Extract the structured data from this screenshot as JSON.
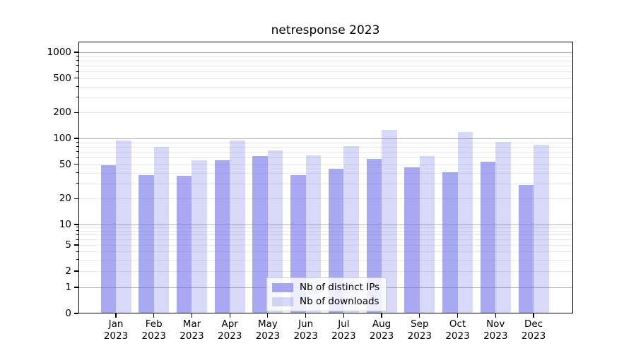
{
  "title": "netresponse 2023",
  "chart_data": {
    "type": "bar",
    "title": "netresponse 2023",
    "categories": [
      "Jan 2023",
      "Feb 2023",
      "Mar 2023",
      "Apr 2023",
      "May 2023",
      "Jun 2023",
      "Jul 2023",
      "Aug 2023",
      "Sep 2023",
      "Oct 2023",
      "Nov 2023",
      "Dec 2023"
    ],
    "series": [
      {
        "name": "Nb of distinct IPs",
        "color": "rgba(99,99,229,0.55)",
        "values": [
          48,
          37,
          36,
          55,
          61,
          37,
          44,
          57,
          45,
          40,
          53,
          28
        ]
      },
      {
        "name": "Nb of downloads",
        "color": "rgba(99,99,229,0.25)",
        "values": [
          93,
          78,
          55,
          93,
          71,
          62,
          80,
          124,
          61,
          116,
          90,
          83
        ]
      }
    ],
    "xlabel": "",
    "ylabel": "",
    "yscale": "log",
    "y_ticks": [
      1000,
      500,
      200,
      100,
      50,
      20,
      10,
      5,
      2,
      1,
      0
    ],
    "ylim": [
      0,
      1280
    ],
    "grid": "on",
    "legend_position": "lower center",
    "colors": {
      "ips_bar_hex": "#a6a6f2",
      "downloads_bar_hex": "#d9d9f8",
      "major_grid": "#b3b3b3",
      "minor_grid": "#e9e9e9"
    }
  }
}
